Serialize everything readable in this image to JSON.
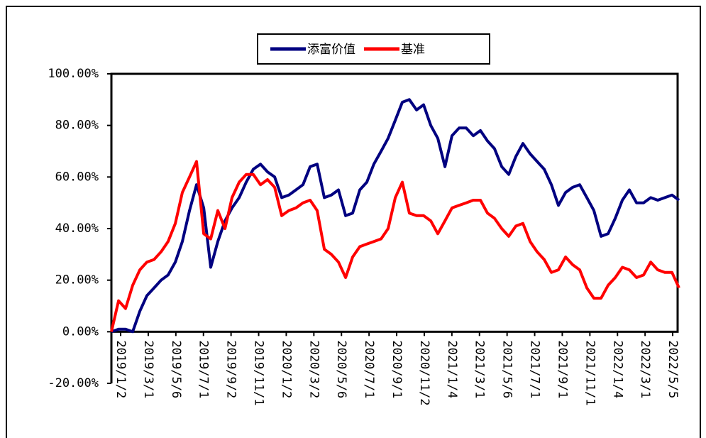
{
  "chart_data": {
    "type": "line",
    "legend": "top",
    "x": [
      -0.67,
      -0.15,
      0.36,
      0.87,
      1.39,
      1.9,
      2.42,
      2.93,
      3.44,
      3.96,
      4.47,
      4.99,
      5.5,
      6.02,
      6.53,
      7.04,
      7.56,
      8.07,
      8.59,
      9.1,
      9.61,
      10.13,
      10.64,
      11.16,
      11.67,
      12.19,
      12.7,
      13.21,
      13.73,
      14.24,
      14.76,
      15.27,
      15.78,
      16.3,
      16.81,
      17.33,
      17.84,
      18.35,
      18.87,
      19.38,
      19.9,
      20.41,
      20.92,
      21.44,
      21.95,
      22.47,
      22.98,
      23.5,
      24.01,
      24.52,
      25.04,
      25.55,
      26.07,
      26.58,
      27.09,
      27.61,
      28.12,
      28.64,
      29.15,
      29.67,
      30.18,
      30.69,
      31.21,
      31.72,
      32.24,
      32.75,
      33.26,
      33.78,
      34.29,
      34.81,
      35.32,
      35.84,
      36.35,
      36.86,
      37.38,
      37.89,
      38.41,
      38.92,
      39.43,
      39.95,
      40.46
    ],
    "series": [
      {
        "name": "添富价值",
        "color": "#000080",
        "values": [
          0,
          1,
          1,
          0,
          8,
          14,
          17,
          20,
          22,
          27,
          35,
          47,
          57,
          48,
          25,
          35,
          43,
          48,
          52,
          58,
          63,
          65,
          62,
          60,
          52,
          53,
          55,
          57,
          64,
          65,
          52,
          53,
          55,
          45,
          46,
          55,
          58,
          65,
          70,
          75,
          82,
          89,
          90,
          86,
          88,
          80,
          75,
          64,
          76,
          79,
          79,
          76,
          78,
          74,
          71,
          64,
          61,
          68,
          73,
          69,
          66,
          63,
          57,
          49,
          54,
          56,
          57,
          52,
          47,
          37,
          38,
          44,
          51,
          55,
          50,
          50,
          52,
          51,
          52,
          53,
          51
        ]
      },
      {
        "name": "基准",
        "color": "#ff0000",
        "values": [
          0,
          12,
          9,
          18,
          24,
          27,
          28,
          31,
          35,
          42,
          54,
          60,
          66,
          38,
          36,
          47,
          40,
          52,
          58,
          61,
          61,
          57,
          59,
          56,
          45,
          47,
          48,
          50,
          51,
          47,
          32,
          30,
          27,
          21,
          29,
          33,
          34,
          35,
          36,
          40,
          52,
          58,
          46,
          45,
          45,
          43,
          38,
          43,
          48,
          49,
          50,
          51,
          51,
          46,
          44,
          40,
          37,
          41,
          42,
          35,
          31,
          28,
          23,
          24,
          29,
          26,
          24,
          17,
          13,
          13,
          18,
          21,
          25,
          24,
          21,
          22,
          27,
          24,
          23,
          23,
          17
        ]
      }
    ],
    "xlim": [
      -0.67,
      40.46
    ],
    "xticks": [
      {
        "value": 0,
        "label": "2019/1/2"
      },
      {
        "value": 2,
        "label": "2019/3/1"
      },
      {
        "value": 4,
        "label": "2019/5/6"
      },
      {
        "value": 6,
        "label": "2019/7/1"
      },
      {
        "value": 8,
        "label": "2019/9/2"
      },
      {
        "value": 10,
        "label": "2019/11/1"
      },
      {
        "value": 12,
        "label": "2020/1/2"
      },
      {
        "value": 14,
        "label": "2020/3/2"
      },
      {
        "value": 16,
        "label": "2020/5/6"
      },
      {
        "value": 18,
        "label": "2020/7/1"
      },
      {
        "value": 20,
        "label": "2020/9/1"
      },
      {
        "value": 22,
        "label": "2020/11/2"
      },
      {
        "value": 24,
        "label": "2021/1/4"
      },
      {
        "value": 26,
        "label": "2021/3/1"
      },
      {
        "value": 28,
        "label": "2021/5/6"
      },
      {
        "value": 30,
        "label": "2021/7/1"
      },
      {
        "value": 32,
        "label": "2021/9/1"
      },
      {
        "value": 34,
        "label": "2021/11/1"
      },
      {
        "value": 36,
        "label": "2022/1/4"
      },
      {
        "value": 38,
        "label": "2022/3/1"
      },
      {
        "value": 40,
        "label": "2022/5/5"
      }
    ],
    "ylim": [
      -20,
      100
    ],
    "yticks": [
      {
        "value": -20,
        "label": "-20.00%"
      },
      {
        "value": 0,
        "label": "0.00%"
      },
      {
        "value": 20,
        "label": "20.00%"
      },
      {
        "value": 40,
        "label": "40.00%"
      },
      {
        "value": 60,
        "label": "60.00%"
      },
      {
        "value": 80,
        "label": "80.00%"
      },
      {
        "value": 100,
        "label": "100.00%"
      }
    ]
  }
}
